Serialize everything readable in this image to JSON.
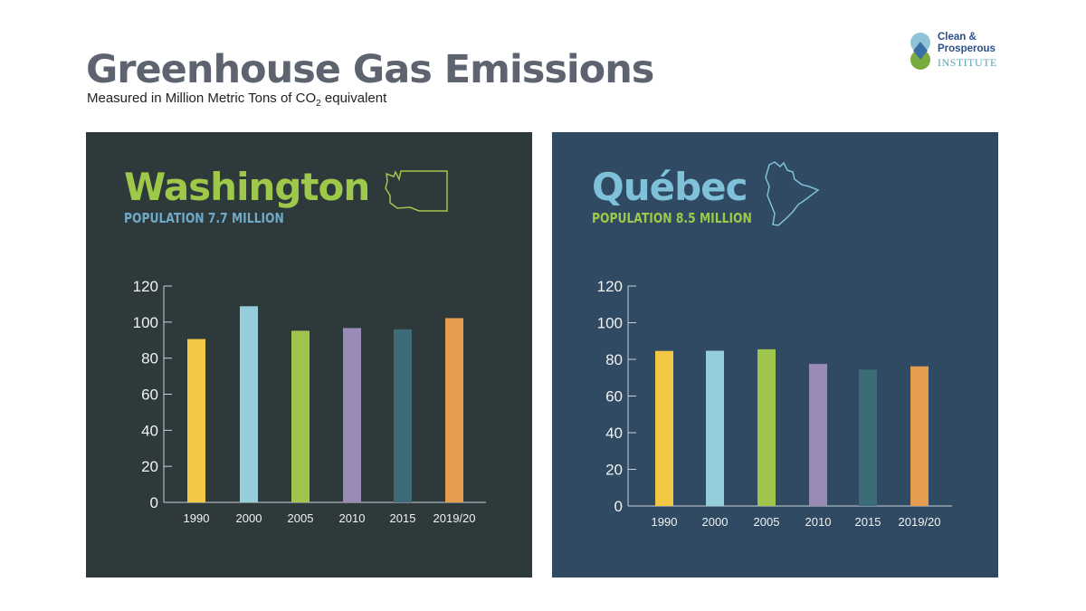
{
  "header": {
    "title": "Greenhouse Gas Emissions",
    "subtitle_pre": "Measured in Million Metric Tons of CO",
    "subtitle_sub": "2",
    "subtitle_post": " equivalent"
  },
  "logo": {
    "line1": "Clean &",
    "line2": "Prosperous",
    "line3": "INSTITUTE"
  },
  "chart_data": [
    {
      "type": "bar",
      "title": "Washington",
      "subtitle": "POPULATION 7.7 MILLION",
      "title_color": "#9dc84a",
      "subtitle_color": "#6fa9c6",
      "categories": [
        "1990",
        "2000",
        "2005",
        "2010",
        "2015",
        "2019/20"
      ],
      "values": [
        90.6,
        108.8,
        95.2,
        96.7,
        96.0,
        102.2
      ],
      "colors": [
        "#f1c945",
        "#95cdda",
        "#a0c54d",
        "#998ab6",
        "#3d6b78",
        "#e39c50"
      ],
      "yticks": [
        0,
        20,
        40,
        60,
        80,
        100,
        120
      ],
      "ylim": [
        0,
        120
      ],
      "xlabel": "",
      "ylabel": "",
      "grid": false
    },
    {
      "type": "bar",
      "title": "Québec",
      "subtitle": "POPULATION 8.5 MILLION",
      "title_color": "#7fc1d8",
      "subtitle_color": "#9dc84a",
      "categories": [
        "1990",
        "2000",
        "2005",
        "2010",
        "2015",
        "2019/20"
      ],
      "values": [
        84.6,
        84.7,
        85.5,
        77.5,
        74.4,
        76.2
      ],
      "colors": [
        "#f1c945",
        "#95cdda",
        "#a0c54d",
        "#998ab6",
        "#3d6b78",
        "#e39c50"
      ],
      "yticks": [
        0,
        20,
        40,
        60,
        80,
        100,
        120
      ],
      "ylim": [
        0,
        120
      ],
      "xlabel": "",
      "ylabel": "",
      "grid": false
    }
  ]
}
